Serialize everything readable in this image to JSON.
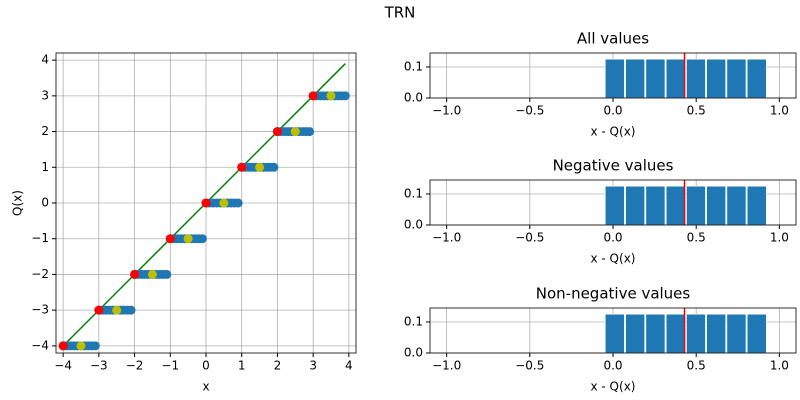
{
  "title": "TRN",
  "chart_data": [
    {
      "type": "scatter",
      "xlabel": "x",
      "ylabel": "Q(x)",
      "grid": true,
      "xlim": [
        -4.2,
        4.2
      ],
      "ylim": [
        -4.2,
        4.2
      ],
      "xticks": [
        {
          "value": -4,
          "label": "−4"
        },
        {
          "value": -3,
          "label": "−3"
        },
        {
          "value": -2,
          "label": "−2"
        },
        {
          "value": -1,
          "label": "−1"
        },
        0,
        1,
        2,
        3,
        4
      ],
      "yticks": [
        {
          "value": -4,
          "label": "−4"
        },
        {
          "value": -3,
          "label": "−3"
        },
        {
          "value": -2,
          "label": "−2"
        },
        {
          "value": -1,
          "label": "−1"
        },
        0,
        1,
        2,
        3,
        4
      ],
      "lines": [
        {
          "color": "#008000",
          "x": [
            -4,
            3.9
          ],
          "y": [
            -4,
            3.9
          ]
        }
      ],
      "series": [
        {
          "color": "#1f77b4",
          "x": [
            -4,
            -3.9,
            -3.8,
            -3.7,
            -3.6,
            -3.5,
            -3.4,
            -3.3,
            -3.2,
            -3.1,
            -3,
            -2.9,
            -2.8,
            -2.7,
            -2.6,
            -2.5,
            -2.4,
            -2.3,
            -2.2,
            -2.1,
            -2,
            -1.9,
            -1.8,
            -1.7,
            -1.6,
            -1.5,
            -1.4,
            -1.3,
            -1.2,
            -1.1,
            -1,
            -0.9,
            -0.8,
            -0.7,
            -0.6,
            -0.5,
            -0.4,
            -0.3,
            -0.2,
            -0.1,
            0,
            0.1,
            0.2,
            0.3,
            0.4,
            0.5,
            0.6,
            0.7,
            0.8,
            0.9,
            1,
            1.1,
            1.2,
            1.3,
            1.4,
            1.5,
            1.6,
            1.7,
            1.8,
            1.9,
            2,
            2.1,
            2.2,
            2.3,
            2.4,
            2.5,
            2.6,
            2.7,
            2.8,
            2.9,
            3,
            3.1,
            3.2,
            3.3,
            3.4,
            3.5,
            3.6,
            3.7,
            3.8,
            3.9
          ],
          "y": [
            -4,
            -4,
            -4,
            -4,
            -4,
            -4,
            -4,
            -4,
            -4,
            -4,
            -3,
            -3,
            -3,
            -3,
            -3,
            -3,
            -3,
            -3,
            -3,
            -3,
            -2,
            -2,
            -2,
            -2,
            -2,
            -2,
            -2,
            -2,
            -2,
            -2,
            -1,
            -1,
            -1,
            -1,
            -1,
            -1,
            -1,
            -1,
            -1,
            -1,
            0,
            0,
            0,
            0,
            0,
            0,
            0,
            0,
            0,
            0,
            1,
            1,
            1,
            1,
            1,
            1,
            1,
            1,
            1,
            1,
            2,
            2,
            2,
            2,
            2,
            2,
            2,
            2,
            2,
            2,
            3,
            3,
            3,
            3,
            3,
            3,
            3,
            3,
            3,
            3
          ]
        },
        {
          "color": "#ff0000",
          "x": [
            -4,
            -3,
            -2,
            -1,
            0,
            1,
            2,
            3
          ],
          "y": [
            -4,
            -3,
            -2,
            -1,
            0,
            1,
            2,
            3
          ]
        },
        {
          "color": "#bfbf00",
          "x": [
            -3.5,
            -2.5,
            -1.5,
            -0.5,
            0.5,
            1.5,
            2.5,
            3.5
          ],
          "y": [
            -4,
            -3,
            -2,
            -1,
            0,
            1,
            2,
            3
          ]
        }
      ]
    },
    {
      "type": "histogram",
      "title": "All values",
      "xlabel": "x - Q(x)",
      "grid": true,
      "color": "#1f77b4",
      "xlim": [
        -1.1,
        1.1
      ],
      "ylim": [
        0,
        0.145
      ],
      "xticks": [
        {
          "value": -1,
          "label": "−1.0"
        },
        {
          "value": -0.5,
          "label": "−0.5"
        },
        {
          "value": 0,
          "label": "0.0"
        },
        0.5,
        {
          "value": 1,
          "label": "1.0"
        }
      ],
      "yticks": [
        {
          "value": 0,
          "label": "0.0"
        },
        0.1
      ],
      "bins": [
        -0.05,
        0.072,
        0.194,
        0.316,
        0.438,
        0.559,
        0.681,
        0.803,
        0.925
      ],
      "counts": [
        0.125,
        0.125,
        0.125,
        0.125,
        0.125,
        0.125,
        0.125,
        0.125
      ],
      "vline": {
        "value": 0.43,
        "color": "#ff0000"
      }
    },
    {
      "type": "histogram",
      "title": "Negative values",
      "xlabel": "x - Q(x)",
      "grid": true,
      "color": "#1f77b4",
      "xlim": [
        -1.1,
        1.1
      ],
      "ylim": [
        0,
        0.145
      ],
      "xticks": [
        {
          "value": -1,
          "label": "−1.0"
        },
        {
          "value": -0.5,
          "label": "−0.5"
        },
        {
          "value": 0,
          "label": "0.0"
        },
        0.5,
        {
          "value": 1,
          "label": "1.0"
        }
      ],
      "yticks": [
        {
          "value": 0,
          "label": "0.0"
        },
        0.1
      ],
      "bins": [
        -0.05,
        0.072,
        0.194,
        0.316,
        0.438,
        0.559,
        0.681,
        0.803,
        0.925
      ],
      "counts": [
        0.125,
        0.125,
        0.125,
        0.125,
        0.125,
        0.125,
        0.125,
        0.125
      ],
      "vline": {
        "value": 0.43,
        "color": "#ff0000"
      }
    },
    {
      "type": "histogram",
      "title": "Non-negative values",
      "xlabel": "x - Q(x)",
      "grid": true,
      "color": "#1f77b4",
      "xlim": [
        -1.1,
        1.1
      ],
      "ylim": [
        0,
        0.145
      ],
      "xticks": [
        {
          "value": -1,
          "label": "−1.0"
        },
        {
          "value": -0.5,
          "label": "−0.5"
        },
        {
          "value": 0,
          "label": "0.0"
        },
        0.5,
        {
          "value": 1,
          "label": "1.0"
        }
      ],
      "yticks": [
        {
          "value": 0,
          "label": "0.0"
        },
        0.1
      ],
      "bins": [
        -0.05,
        0.072,
        0.194,
        0.316,
        0.438,
        0.559,
        0.681,
        0.803,
        0.925
      ],
      "counts": [
        0.125,
        0.125,
        0.125,
        0.125,
        0.125,
        0.125,
        0.125,
        0.125
      ],
      "vline": {
        "value": 0.43,
        "color": "#ff0000"
      }
    }
  ]
}
